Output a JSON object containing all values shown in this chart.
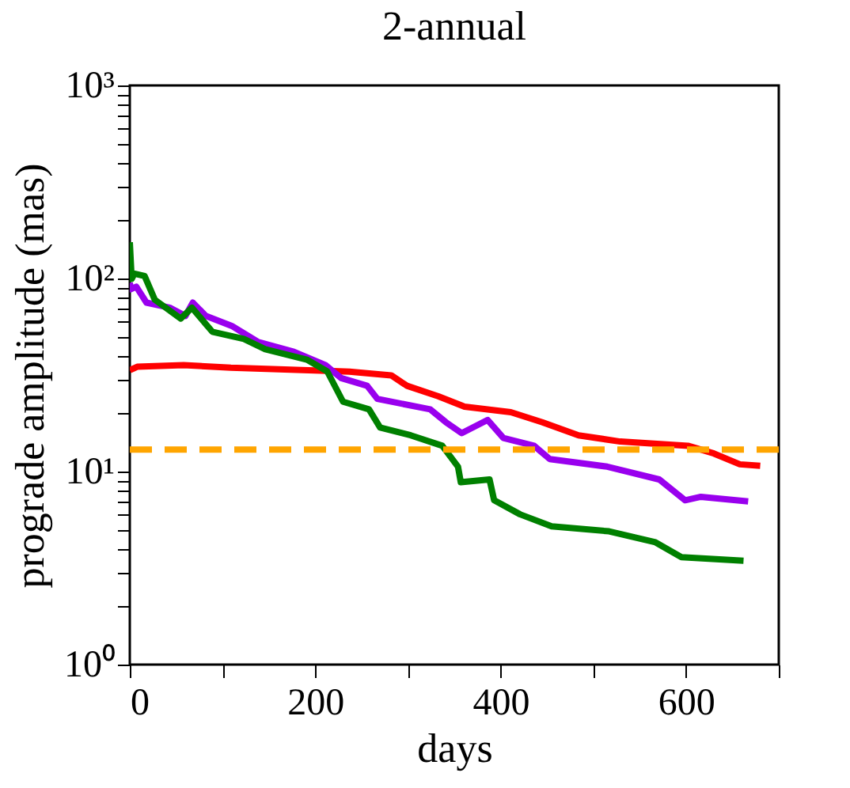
{
  "chart_data": {
    "type": "line",
    "title": "2-annual",
    "xlabel": "days",
    "ylabel": "prograde amplitude (mas)",
    "log": "y",
    "grid": false,
    "marker": "none",
    "line_style": "solid",
    "xlim": [
      0,
      700
    ],
    "ylim": [
      1,
      1000
    ],
    "xticks": [
      0,
      {
        "value": 100,
        "label": null
      },
      200,
      {
        "value": 300,
        "label": null
      },
      400,
      {
        "value": 500,
        "label": null
      },
      600,
      {
        "value": 700,
        "label": null
      }
    ],
    "yticks": [
      {
        "value": 1,
        "label": "10⁰"
      },
      {
        "value": 2,
        "label": null
      },
      {
        "value": 3,
        "label": null
      },
      {
        "value": 4,
        "label": null
      },
      {
        "value": 5,
        "label": null
      },
      {
        "value": 6,
        "label": null
      },
      {
        "value": 7,
        "label": null
      },
      {
        "value": 8,
        "label": null
      },
      {
        "value": 9,
        "label": null
      },
      {
        "value": 10,
        "label": "10¹"
      },
      {
        "value": 20,
        "label": null
      },
      {
        "value": 30,
        "label": null
      },
      {
        "value": 40,
        "label": null
      },
      {
        "value": 50,
        "label": null
      },
      {
        "value": 60,
        "label": null
      },
      {
        "value": 70,
        "label": null
      },
      {
        "value": 80,
        "label": null
      },
      {
        "value": 90,
        "label": null
      },
      {
        "value": 100,
        "label": "10²"
      },
      {
        "value": 200,
        "label": null
      },
      {
        "value": 300,
        "label": null
      },
      {
        "value": 400,
        "label": null
      },
      {
        "value": 500,
        "label": null
      },
      {
        "value": 600,
        "label": null
      },
      {
        "value": 700,
        "label": null
      },
      {
        "value": 800,
        "label": null
      },
      {
        "value": 900,
        "label": null
      },
      {
        "value": 1000,
        "label": "10³"
      }
    ],
    "series": [
      {
        "color": "#ff0000",
        "x": [
          0,
          8,
          58,
          109,
          193,
          237,
          282,
          299,
          333,
          361,
          411,
          445,
          484,
          529,
          602,
          630,
          658,
          680
        ],
        "values": [
          33.5,
          34.9,
          35.6,
          34.5,
          33.5,
          32.9,
          31.5,
          27.8,
          24.5,
          21.7,
          20.3,
          18,
          15.4,
          14.3,
          13.6,
          12.4,
          10.9,
          10.7
        ]
      },
      {
        "color": "#9900ee",
        "x": [
          0,
          1,
          7,
          18,
          43,
          60,
          68,
          82,
          110,
          138,
          177,
          211,
          228,
          256,
          267,
          324,
          341,
          358,
          386,
          403,
          436,
          453,
          515,
          571,
          599,
          616,
          667
        ],
        "values": [
          95,
          88,
          90.6,
          75,
          70.6,
          64,
          75,
          64,
          56.8,
          47,
          41.7,
          35.6,
          30.5,
          27.8,
          23.8,
          21,
          18,
          15.8,
          18.5,
          14.9,
          13.6,
          11.6,
          10.6,
          9.1,
          7.1,
          7.4,
          7.0
        ]
      },
      {
        "color": "#008000",
        "x": [
          0,
          2,
          5,
          16,
          27,
          55,
          67,
          89,
          123,
          146,
          191,
          213,
          230,
          258,
          270,
          303,
          337,
          354,
          357,
          388,
          393,
          421,
          455,
          517,
          567,
          595,
          662
        ],
        "values": [
          154,
          99.5,
          106,
          103,
          77.6,
          62,
          70.6,
          53,
          48.6,
          43,
          38,
          33,
          23,
          21,
          16.9,
          15.4,
          13.6,
          10.6,
          8.8,
          9.1,
          7.1,
          6.0,
          5.2,
          4.9,
          4.3,
          3.6,
          3.45
        ]
      }
    ],
    "ref_lines": [
      {
        "axis": "y",
        "value": 13,
        "color": "#ffa500",
        "line_style": "dashed"
      }
    ]
  }
}
